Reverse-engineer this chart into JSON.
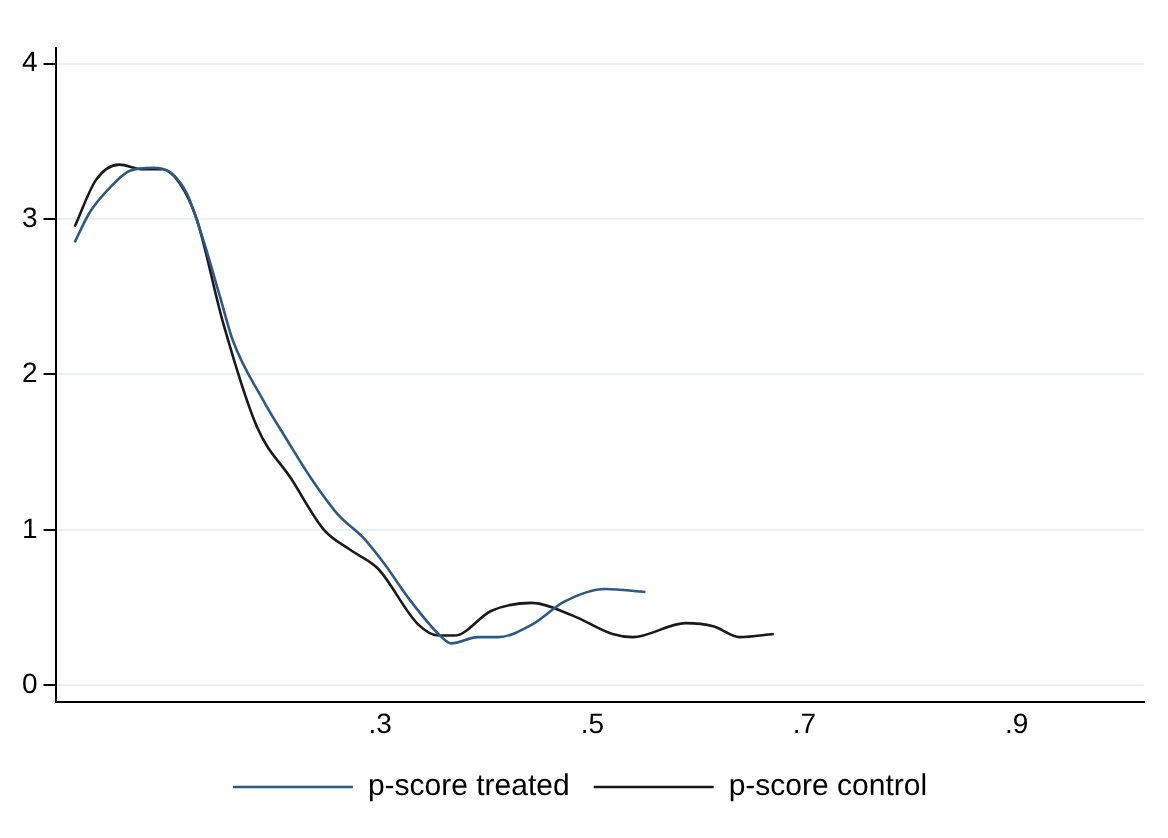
{
  "chart_data": {
    "type": "line",
    "xlim": [
      -0.006,
      1.02
    ],
    "ylim": [
      -0.11,
      4.1
    ],
    "xticks": [
      {
        "value": 0.3,
        "label": ".3"
      },
      {
        "value": 0.5,
        "label": ".5"
      },
      {
        "value": 0.7,
        "label": ".7"
      },
      {
        "value": 0.9,
        "label": ".9"
      }
    ],
    "yticks": [
      0,
      1,
      2,
      3,
      4
    ],
    "grid": "y",
    "legend": "bottom",
    "marker": "none",
    "line_style": "solid",
    "series": [
      {
        "name": "p-score treated",
        "color": "#2c5a85",
        "x": [
          0.012,
          0.026,
          0.045,
          0.064,
          0.086,
          0.102,
          0.118,
          0.133,
          0.149,
          0.161,
          0.19,
          0.212,
          0.235,
          0.26,
          0.284,
          0.303,
          0.329,
          0.355,
          0.367,
          0.392,
          0.411,
          0.443,
          0.474,
          0.512,
          0.55
        ],
        "values": [
          2.85,
          3.04,
          3.2,
          3.31,
          3.33,
          3.3,
          3.16,
          2.87,
          2.5,
          2.22,
          1.83,
          1.58,
          1.33,
          1.1,
          0.95,
          0.79,
          0.54,
          0.33,
          0.27,
          0.31,
          0.31,
          0.39,
          0.54,
          0.62,
          0.6
        ]
      },
      {
        "name": "p-score control",
        "color": "#1a1a1a",
        "x": [
          0.012,
          0.032,
          0.054,
          0.076,
          0.095,
          0.111,
          0.127,
          0.152,
          0.184,
          0.216,
          0.247,
          0.272,
          0.298,
          0.336,
          0.355,
          0.37,
          0.405,
          0.443,
          0.481,
          0.519,
          0.538,
          0.588,
          0.614,
          0.639,
          0.671
        ],
        "values": [
          2.95,
          3.25,
          3.35,
          3.32,
          3.32,
          3.23,
          3.0,
          2.33,
          1.66,
          1.33,
          1.0,
          0.87,
          0.75,
          0.39,
          0.32,
          0.32,
          0.48,
          0.53,
          0.45,
          0.33,
          0.31,
          0.4,
          0.38,
          0.31,
          0.33
        ]
      }
    ]
  }
}
